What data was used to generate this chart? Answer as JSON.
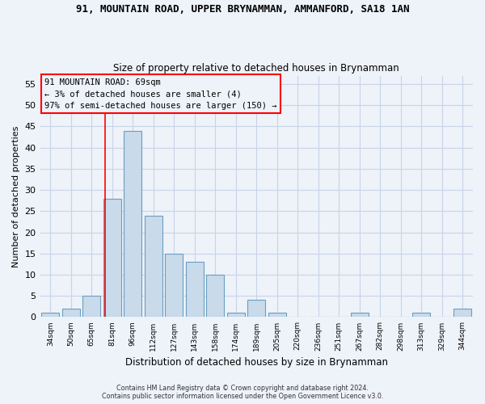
{
  "title_line1": "91, MOUNTAIN ROAD, UPPER BRYNAMMAN, AMMANFORD, SA18 1AN",
  "title_line2": "Size of property relative to detached houses in Brynamman",
  "xlabel": "Distribution of detached houses by size in Brynamman",
  "ylabel": "Number of detached properties",
  "footnote": "Contains HM Land Registry data © Crown copyright and database right 2024.\nContains public sector information licensed under the Open Government Licence v3.0.",
  "bin_labels": [
    "34sqm",
    "50sqm",
    "65sqm",
    "81sqm",
    "96sqm",
    "112sqm",
    "127sqm",
    "143sqm",
    "158sqm",
    "174sqm",
    "189sqm",
    "205sqm",
    "220sqm",
    "236sqm",
    "251sqm",
    "267sqm",
    "282sqm",
    "298sqm",
    "313sqm",
    "329sqm",
    "344sqm"
  ],
  "bar_values": [
    1,
    2,
    5,
    28,
    44,
    24,
    15,
    13,
    10,
    1,
    4,
    1,
    0,
    0,
    0,
    1,
    0,
    0,
    1,
    0,
    2
  ],
  "bar_color": "#c9daea",
  "bar_edgecolor": "#6a9ec2",
  "ylim": [
    0,
    57
  ],
  "yticks": [
    0,
    5,
    10,
    15,
    20,
    25,
    30,
    35,
    40,
    45,
    50,
    55
  ],
  "property_label": "91 MOUNTAIN ROAD: 69sqm",
  "annotation_line1": "← 3% of detached houses are smaller (4)",
  "annotation_line2": "97% of semi-detached houses are larger (150) →",
  "vline_x_index": 2.67,
  "background_color": "#eef2f9",
  "grid_color": "#c8d4e8"
}
